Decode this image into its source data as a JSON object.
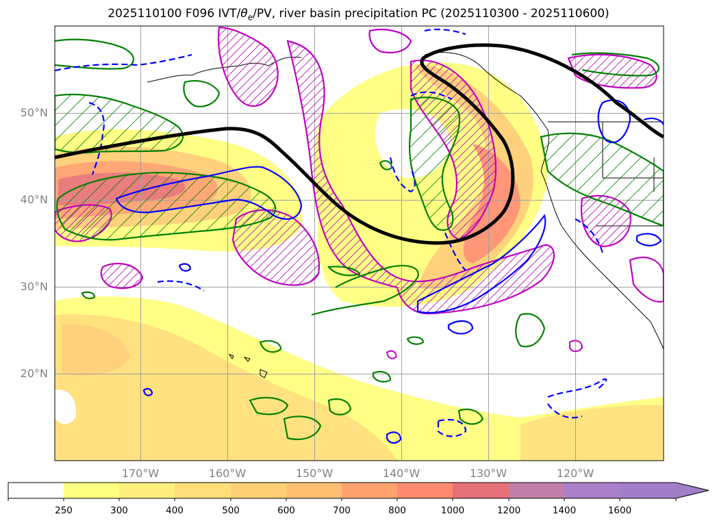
{
  "title": {
    "prefix": "2025110100 F096 IVT/",
    "theta": "θ",
    "sub": "e",
    "suffix": "/PV, river basin precipitation PC (2025110300 - 2025110600)"
  },
  "map": {
    "lat_labels": [
      {
        "text": "50°N",
        "value": 50
      },
      {
        "text": "40°N",
        "value": 40
      },
      {
        "text": "30°N",
        "value": 30
      },
      {
        "text": "20°N",
        "value": 20
      }
    ],
    "lon_labels": [
      {
        "text": "170°W",
        "value": -170
      },
      {
        "text": "160°W",
        "value": -160
      },
      {
        "text": "150°W",
        "value": -150
      },
      {
        "text": "140°W",
        "value": -140
      },
      {
        "text": "130°W",
        "value": -130
      },
      {
        "text": "120°W",
        "value": -120
      }
    ],
    "extent": {
      "lon": [
        -180,
        -110
      ],
      "lat": [
        10,
        60
      ]
    }
  },
  "colorbar": {
    "levels": [
      "250",
      "300",
      "400",
      "500",
      "600",
      "700",
      "800",
      "1000",
      "1200",
      "1400",
      "1600"
    ],
    "colors": [
      "#ffffff",
      "#ffff80",
      "#ffef7c",
      "#ffdf7a",
      "#ffcf75",
      "#ffbf72",
      "#ffa36f",
      "#ff8a70",
      "#e5707a",
      "#c07fa8",
      "#ab7fc9",
      "#a07fc8"
    ]
  }
}
